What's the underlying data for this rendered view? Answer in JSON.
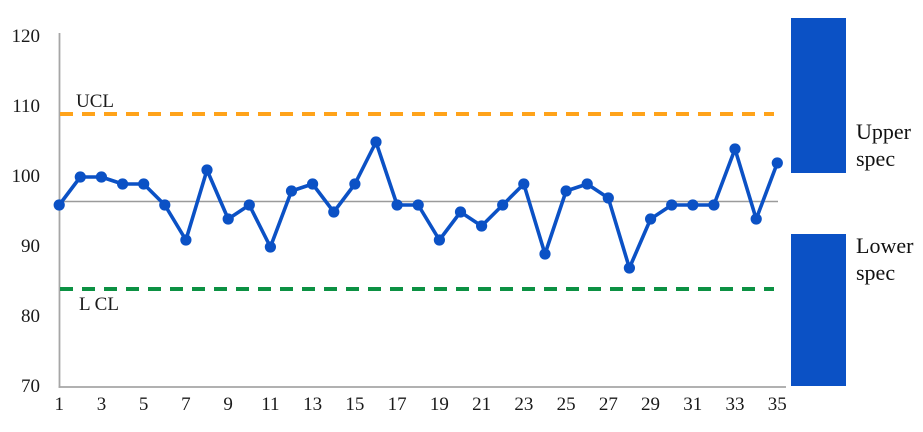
{
  "chart_data": {
    "type": "line",
    "title": "",
    "xlabel": "",
    "ylabel": "",
    "x": [
      1,
      2,
      3,
      4,
      5,
      6,
      7,
      8,
      9,
      10,
      11,
      12,
      13,
      14,
      15,
      16,
      17,
      18,
      19,
      20,
      21,
      22,
      23,
      24,
      25,
      26,
      27,
      28,
      29,
      30,
      31,
      32,
      33,
      34,
      35
    ],
    "values": [
      96,
      100,
      100,
      99,
      99,
      96,
      91,
      101,
      94,
      96,
      90,
      98,
      99,
      95,
      99,
      105,
      96,
      96,
      91,
      95,
      93,
      96,
      99,
      89,
      98,
      99,
      97,
      87,
      94,
      96,
      96,
      96,
      104,
      94,
      102
    ],
    "center_line": 96.5,
    "ucl": {
      "label": "UCL",
      "value": 109
    },
    "lcl": {
      "label": "L CL",
      "value": 84
    },
    "ylim": [
      70,
      120
    ],
    "yticks": [
      120,
      110,
      100,
      90,
      80,
      70
    ],
    "xticks": [
      1,
      3,
      5,
      7,
      9,
      11,
      13,
      15,
      17,
      19,
      21,
      23,
      25,
      27,
      29,
      31,
      33,
      35
    ],
    "grid": false,
    "legend_position": "none",
    "marker": "circle",
    "ucl_line_style": "dashed",
    "lcl_line_style": "dashed"
  },
  "annotations": {
    "upper_spec": {
      "line1": "Upper",
      "line2": "spec"
    },
    "lower_spec": {
      "line1": "Lower",
      "line2": "spec"
    }
  },
  "colors": {
    "series_blue": "#0B51C5",
    "ucl_orange": "#FFA31A",
    "lcl_green": "#0C9143",
    "axis_gray": "#A6A6A6",
    "center_gray": "#9B9B9B",
    "text": "#1A1A1A"
  }
}
